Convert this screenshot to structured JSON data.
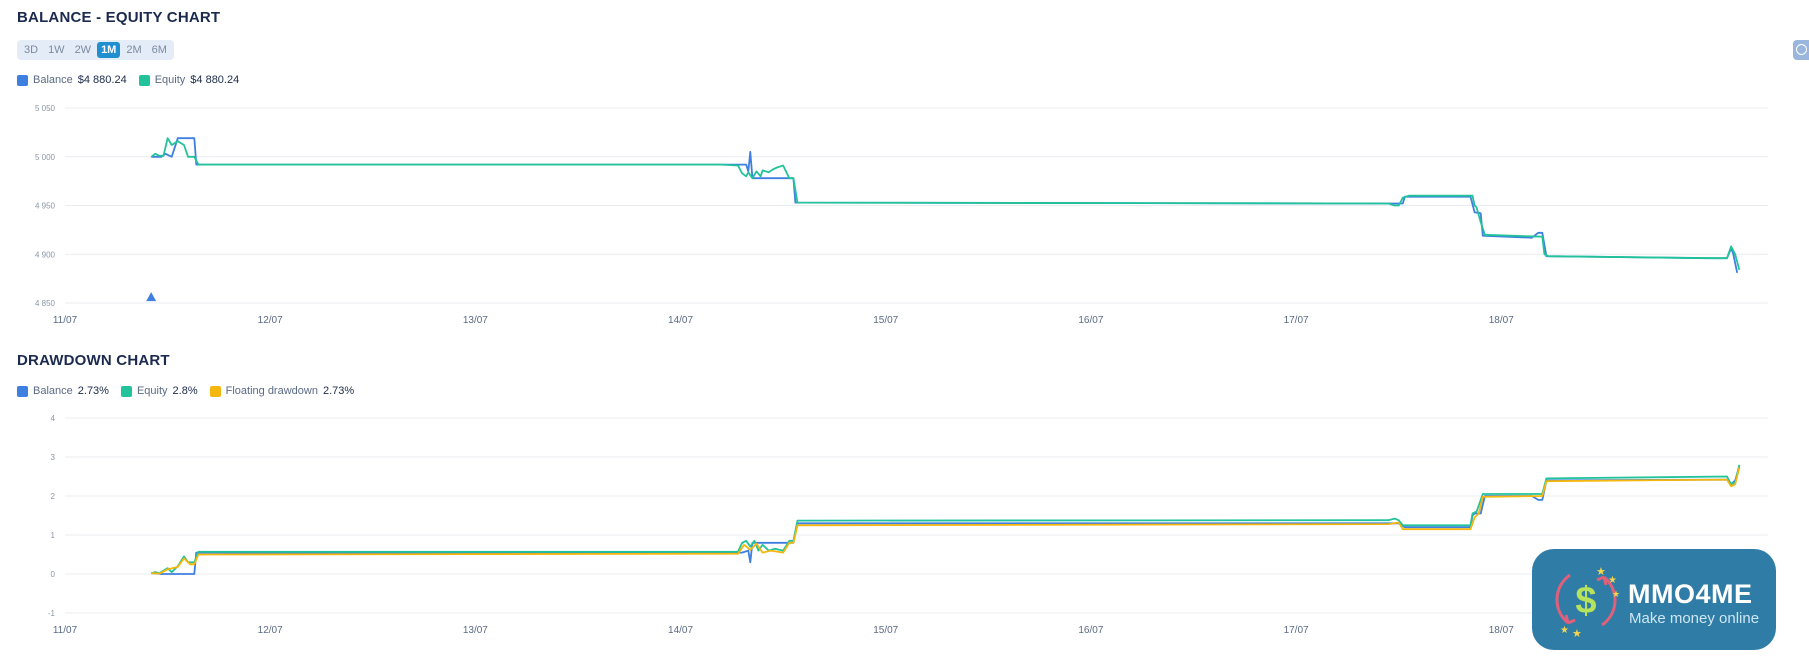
{
  "sections": {
    "equity_title": "BALANCE - EQUITY CHART",
    "drawdown_title": "DRAWDOWN CHART"
  },
  "range_buttons": [
    {
      "label": "3D",
      "active": false
    },
    {
      "label": "1W",
      "active": false
    },
    {
      "label": "2W",
      "active": false
    },
    {
      "label": "1M",
      "active": true
    },
    {
      "label": "2M",
      "active": false
    },
    {
      "label": "6M",
      "active": false
    }
  ],
  "equity_legend": [
    {
      "name": "Balance",
      "value": "$4 880.24",
      "color": "#3f7fe0"
    },
    {
      "name": "Equity",
      "value": "$4 880.24",
      "color": "#22c39a"
    }
  ],
  "drawdown_legend": [
    {
      "name": "Balance",
      "value": "2.73%",
      "color": "#3f7fe0"
    },
    {
      "name": "Equity",
      "value": "2.8%",
      "color": "#22c39a"
    },
    {
      "name": "Floating drawdown",
      "value": "2.73%",
      "color": "#f5b60d"
    }
  ],
  "watermark": {
    "title": "MMO4ME",
    "subtitle": "Make money online",
    "icon": "dollar-logo-icon"
  },
  "toolbar": {
    "zoom_icon": "zoom-out-icon"
  },
  "chart_data": [
    {
      "type": "line",
      "title": "BALANCE - EQUITY CHART",
      "x_tick_labels": [
        "11/07",
        "12/07",
        "13/07",
        "14/07",
        "15/07",
        "16/07",
        "17/07",
        "18/07"
      ],
      "y_ticks": [
        4850,
        4900,
        4950,
        5000,
        5050
      ],
      "y_tick_labels": [
        "4 850",
        "4 900",
        "4 950",
        "5 000",
        "5 050"
      ],
      "ylim": [
        4850,
        5050
      ],
      "xlim": [
        0,
        8.3
      ],
      "grid": true,
      "legend_position": "top-left",
      "marker": {
        "x": 0.42,
        "y": 4855,
        "shape": "triangle",
        "color": "#3f7fe0"
      },
      "series": [
        {
          "name": "Balance",
          "color": "#3f7fe0",
          "points": [
            [
              0.42,
              5000
            ],
            [
              0.47,
              5000
            ],
            [
              0.49,
              5003
            ],
            [
              0.52,
              5000
            ],
            [
              0.55,
              5019
            ],
            [
              0.63,
              5019
            ],
            [
              0.64,
              4992
            ],
            [
              3.32,
              4992
            ],
            [
              3.33,
              4985
            ],
            [
              3.34,
              5005
            ],
            [
              3.35,
              4978
            ],
            [
              3.55,
              4978
            ],
            [
              3.56,
              4953
            ],
            [
              6.5,
              4952
            ],
            [
              6.52,
              4952
            ],
            [
              6.53,
              4959
            ],
            [
              6.85,
              4959
            ],
            [
              6.87,
              4943
            ],
            [
              6.9,
              4942
            ],
            [
              6.91,
              4919
            ],
            [
              7.15,
              4917
            ],
            [
              7.18,
              4922
            ],
            [
              7.2,
              4922
            ],
            [
              7.22,
              4898
            ],
            [
              8.0,
              4896
            ],
            [
              8.1,
              4896
            ],
            [
              8.12,
              4906
            ],
            [
              8.13,
              4901
            ],
            [
              8.15,
              4881
            ]
          ]
        },
        {
          "name": "Equity",
          "color": "#22c39a",
          "points": [
            [
              0.42,
              5000
            ],
            [
              0.44,
              5003
            ],
            [
              0.46,
              5001
            ],
            [
              0.48,
              5001
            ],
            [
              0.5,
              5019
            ],
            [
              0.52,
              5012
            ],
            [
              0.55,
              5016
            ],
            [
              0.58,
              5012
            ],
            [
              0.6,
              5000
            ],
            [
              0.63,
              5000
            ],
            [
              0.65,
              4992
            ],
            [
              3.2,
              4992
            ],
            [
              3.28,
              4991
            ],
            [
              3.3,
              4983
            ],
            [
              3.32,
              4980
            ],
            [
              3.33,
              4984
            ],
            [
              3.35,
              4978
            ],
            [
              3.37,
              4985
            ],
            [
              3.39,
              4980
            ],
            [
              3.4,
              4986
            ],
            [
              3.43,
              4984
            ],
            [
              3.45,
              4987
            ],
            [
              3.47,
              4989
            ],
            [
              3.5,
              4991
            ],
            [
              3.53,
              4978
            ],
            [
              3.55,
              4978
            ],
            [
              3.57,
              4953
            ],
            [
              6.45,
              4952
            ],
            [
              6.48,
              4950
            ],
            [
              6.5,
              4950
            ],
            [
              6.52,
              4958
            ],
            [
              6.55,
              4960
            ],
            [
              6.86,
              4960
            ],
            [
              6.87,
              4950
            ],
            [
              6.88,
              4948
            ],
            [
              6.9,
              4933
            ],
            [
              6.92,
              4920
            ],
            [
              7.2,
              4918
            ],
            [
              7.21,
              4900
            ],
            [
              7.23,
              4898
            ],
            [
              8.05,
              4896
            ],
            [
              8.1,
              4896
            ],
            [
              8.12,
              4908
            ],
            [
              8.14,
              4900
            ],
            [
              8.16,
              4884
            ]
          ]
        }
      ]
    },
    {
      "type": "line",
      "title": "DRAWDOWN CHART",
      "x_tick_labels": [
        "11/07",
        "12/07",
        "13/07",
        "14/07",
        "15/07",
        "16/07",
        "17/07",
        "18/07"
      ],
      "y_ticks": [
        -1,
        0,
        1,
        2,
        3,
        4
      ],
      "y_tick_labels": [
        "-1",
        "0",
        "1",
        "2",
        "3",
        "4"
      ],
      "ylim": [
        -1,
        4
      ],
      "xlim": [
        0,
        8.3
      ],
      "grid": true,
      "legend_position": "top-left",
      "series": [
        {
          "name": "Balance",
          "color": "#3f7fe0",
          "points": [
            [
              0.42,
              0.02
            ],
            [
              0.47,
              0.0
            ],
            [
              0.52,
              0.0
            ],
            [
              0.6,
              0.0
            ],
            [
              0.63,
              0.0
            ],
            [
              0.64,
              0.55
            ],
            [
              3.3,
              0.55
            ],
            [
              3.33,
              0.6
            ],
            [
              3.34,
              0.3
            ],
            [
              3.35,
              0.8
            ],
            [
              3.55,
              0.8
            ],
            [
              3.57,
              1.3
            ],
            [
              6.5,
              1.3
            ],
            [
              6.53,
              1.2
            ],
            [
              6.85,
              1.2
            ],
            [
              6.86,
              1.5
            ],
            [
              6.87,
              1.55
            ],
            [
              6.9,
              1.55
            ],
            [
              6.92,
              2.0
            ],
            [
              7.15,
              2.0
            ],
            [
              7.18,
              1.9
            ],
            [
              7.2,
              1.9
            ],
            [
              7.22,
              2.4
            ],
            [
              8.1,
              2.42
            ],
            [
              8.12,
              2.3
            ],
            [
              8.14,
              2.4
            ],
            [
              8.16,
              2.75
            ]
          ]
        },
        {
          "name": "Equity",
          "color": "#22c39a",
          "points": [
            [
              0.42,
              0.02
            ],
            [
              0.44,
              0.05
            ],
            [
              0.46,
              0.02
            ],
            [
              0.5,
              0.15
            ],
            [
              0.52,
              0.05
            ],
            [
              0.55,
              0.2
            ],
            [
              0.58,
              0.45
            ],
            [
              0.6,
              0.3
            ],
            [
              0.63,
              0.3
            ],
            [
              0.65,
              0.57
            ],
            [
              3.28,
              0.57
            ],
            [
              3.3,
              0.8
            ],
            [
              3.32,
              0.85
            ],
            [
              3.34,
              0.7
            ],
            [
              3.36,
              0.85
            ],
            [
              3.38,
              0.6
            ],
            [
              3.4,
              0.75
            ],
            [
              3.43,
              0.6
            ],
            [
              3.46,
              0.65
            ],
            [
              3.5,
              0.6
            ],
            [
              3.53,
              0.85
            ],
            [
              3.55,
              0.85
            ],
            [
              3.57,
              1.37
            ],
            [
              6.45,
              1.38
            ],
            [
              6.48,
              1.42
            ],
            [
              6.5,
              1.38
            ],
            [
              6.52,
              1.25
            ],
            [
              6.85,
              1.25
            ],
            [
              6.86,
              1.55
            ],
            [
              6.88,
              1.6
            ],
            [
              6.91,
              2.05
            ],
            [
              7.2,
              2.05
            ],
            [
              7.22,
              2.45
            ],
            [
              8.1,
              2.5
            ],
            [
              8.12,
              2.3
            ],
            [
              8.14,
              2.35
            ],
            [
              8.16,
              2.8
            ]
          ]
        },
        {
          "name": "Floating drawdown",
          "color": "#f5b60d",
          "points": [
            [
              0.42,
              0.02
            ],
            [
              0.46,
              0.01
            ],
            [
              0.5,
              0.12
            ],
            [
              0.55,
              0.18
            ],
            [
              0.58,
              0.4
            ],
            [
              0.61,
              0.25
            ],
            [
              0.63,
              0.25
            ],
            [
              0.65,
              0.5
            ],
            [
              3.28,
              0.52
            ],
            [
              3.31,
              0.75
            ],
            [
              3.34,
              0.62
            ],
            [
              3.37,
              0.78
            ],
            [
              3.4,
              0.55
            ],
            [
              3.44,
              0.6
            ],
            [
              3.5,
              0.55
            ],
            [
              3.53,
              0.8
            ],
            [
              3.55,
              0.8
            ],
            [
              3.57,
              1.25
            ],
            [
              6.45,
              1.28
            ],
            [
              6.5,
              1.32
            ],
            [
              6.52,
              1.15
            ],
            [
              6.85,
              1.15
            ],
            [
              6.87,
              1.45
            ],
            [
              6.89,
              1.55
            ],
            [
              6.91,
              1.98
            ],
            [
              7.2,
              2.0
            ],
            [
              7.22,
              2.38
            ],
            [
              8.1,
              2.42
            ],
            [
              8.12,
              2.25
            ],
            [
              8.14,
              2.3
            ],
            [
              8.16,
              2.73
            ]
          ]
        }
      ]
    }
  ]
}
